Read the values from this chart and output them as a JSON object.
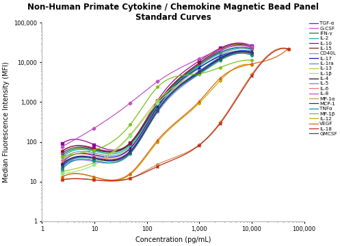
{
  "title": "Non-Human Primate Cytokine / Chemokine Magnetic Bead Panel\nStandard Curves",
  "xlabel": "Concentration (pg/mL)",
  "ylabel": "Median Fluorescence Intensity (MFI)",
  "bg_color": "#ffffff",
  "series": [
    {
      "name": "TGF-α",
      "color": "#3c3c8c",
      "marker": "o",
      "x": [
        2.4,
        9.8,
        48,
        160,
        1000,
        2500,
        10000
      ],
      "y": [
        50,
        65,
        90,
        900,
        9000,
        18000,
        22000
      ]
    },
    {
      "name": "G-CSF",
      "color": "#e040e0",
      "marker": "s",
      "x": [
        2.4,
        9.8,
        48,
        160,
        1000,
        2500,
        10000
      ],
      "y": [
        55,
        70,
        92,
        950,
        9500,
        20000,
        23000
      ]
    },
    {
      "name": "IFN-γ",
      "color": "#207820",
      "marker": "^",
      "x": [
        2.4,
        9.8,
        48,
        160,
        1000,
        2500,
        10000
      ],
      "y": [
        45,
        62,
        88,
        880,
        8800,
        19500,
        24000
      ]
    },
    {
      "name": "IL-2",
      "color": "#00b0b0",
      "marker": "+",
      "x": [
        2.4,
        9.8,
        48,
        160,
        1000,
        2500,
        10000
      ],
      "y": [
        40,
        58,
        80,
        820,
        8200,
        17000,
        21000
      ]
    },
    {
      "name": "IL-10",
      "color": "#9000a0",
      "marker": "s",
      "x": [
        2.4,
        9.8,
        48,
        160,
        1000,
        2500,
        10000
      ],
      "y": [
        90,
        85,
        95,
        1100,
        11000,
        23000,
        26000
      ]
    },
    {
      "name": "IL-15",
      "color": "#802010",
      "marker": "o",
      "x": [
        2.4,
        9.8,
        48,
        160,
        1000,
        2500,
        10000
      ],
      "y": [
        58,
        68,
        93,
        950,
        9800,
        21500,
        24000
      ]
    },
    {
      "name": "CD40L",
      "color": "#909090",
      "marker": "+",
      "x": [
        2.4,
        9.8,
        48,
        160,
        1000,
        2500,
        10000
      ],
      "y": [
        35,
        52,
        72,
        720,
        7200,
        15500,
        20500
      ]
    },
    {
      "name": "IL-17",
      "color": "#1010a0",
      "marker": "^",
      "x": [
        2.4,
        9.8,
        48,
        160,
        1000,
        2500,
        10000
      ],
      "y": [
        30,
        47,
        68,
        760,
        7500,
        14500,
        19000
      ]
    },
    {
      "name": "IL-1ra",
      "color": "#4090e0",
      "marker": "o",
      "x": [
        2.4,
        9.8,
        48,
        160,
        1000,
        2500,
        10000
      ],
      "y": [
        22,
        38,
        58,
        650,
        6200,
        13500,
        18000
      ]
    },
    {
      "name": "IL-13",
      "color": "#c8c030",
      "marker": "D",
      "x": [
        2.4,
        9.8,
        48,
        160,
        1000,
        2500,
        10000
      ],
      "y": [
        18,
        30,
        150,
        1100,
        5500,
        12000,
        17000
      ]
    },
    {
      "name": "IL-1β",
      "color": "#90e890",
      "marker": "D",
      "x": [
        2.4,
        9.8,
        48,
        160,
        1000,
        2500,
        10000
      ],
      "y": [
        16,
        26,
        140,
        950,
        5000,
        11000,
        15500
      ]
    },
    {
      "name": "IL-4",
      "color": "#181818",
      "marker": "^",
      "x": [
        2.4,
        9.8,
        48,
        160,
        1000,
        2500,
        10000
      ],
      "y": [
        28,
        38,
        58,
        620,
        5600,
        12500,
        17000
      ]
    },
    {
      "name": "IL-5",
      "color": "#7878f8",
      "marker": "+",
      "x": [
        2.4,
        9.8,
        48,
        160,
        1000,
        2500,
        10000
      ],
      "y": [
        24,
        32,
        52,
        560,
        5100,
        11500,
        15800
      ]
    },
    {
      "name": "IL-6",
      "color": "#f07070",
      "marker": "x",
      "x": [
        2.4,
        9.8,
        48,
        160,
        1000,
        2500,
        10000
      ],
      "y": [
        32,
        44,
        60,
        640,
        5400,
        12000,
        16200
      ]
    },
    {
      "name": "IL-8",
      "color": "#c050c0",
      "marker": "D",
      "x": [
        2.4,
        9.8,
        48,
        160,
        1000,
        2500,
        10000
      ],
      "y": [
        75,
        220,
        950,
        3300,
        12500,
        21000,
        25000
      ]
    },
    {
      "name": "MP-1α",
      "color": "#d09050",
      "marker": "D",
      "x": [
        2.4,
        9.8,
        48,
        160,
        1000,
        2500,
        10000,
        50000
      ],
      "y": [
        11,
        11,
        12,
        27,
        85,
        310,
        5000,
        22000
      ]
    },
    {
      "name": "MCP-1",
      "color": "#2020c0",
      "marker": "o",
      "x": [
        2.4,
        9.8,
        48,
        160,
        1000,
        2500,
        10000
      ],
      "y": [
        26,
        40,
        58,
        640,
        5900,
        13000,
        17500
      ]
    },
    {
      "name": "TNFα",
      "color": "#009898",
      "marker": "o",
      "x": [
        2.4,
        9.8,
        48,
        160,
        1000,
        2500,
        10000
      ],
      "y": [
        20,
        34,
        50,
        600,
        5300,
        11500,
        15200
      ]
    },
    {
      "name": "MP-1β",
      "color": "#78c010",
      "marker": "o",
      "x": [
        2.4,
        9.8,
        48,
        160,
        1000,
        2500,
        10000
      ],
      "y": [
        42,
        62,
        270,
        2400,
        5200,
        7500,
        11500
      ]
    },
    {
      "name": "IL-12",
      "color": "#c8a800",
      "marker": "o",
      "x": [
        2.4,
        9.8,
        48,
        160,
        1000,
        2500,
        10000
      ],
      "y": [
        13,
        13,
        15,
        100,
        950,
        3500,
        8500
      ]
    },
    {
      "name": "VEGF",
      "color": "#e06010",
      "marker": "^",
      "x": [
        2.4,
        9.8,
        48,
        160,
        1000,
        2500,
        10000,
        50000
      ],
      "y": [
        13,
        13,
        16,
        110,
        1050,
        4000,
        9200,
        22500
      ]
    },
    {
      "name": "IL-18",
      "color": "#c02818",
      "marker": "x",
      "x": [
        2.4,
        9.8,
        48,
        160,
        1000,
        2500,
        10000,
        50000
      ],
      "y": [
        11,
        11,
        12,
        24,
        82,
        290,
        4600,
        21500
      ]
    },
    {
      "name": "GMCSF",
      "color": "#484848",
      "marker": "x",
      "x": [
        2.4,
        9.8,
        48,
        160,
        1000,
        2500,
        10000
      ],
      "y": [
        24,
        38,
        54,
        615,
        5600,
        12200,
        16800
      ]
    }
  ]
}
